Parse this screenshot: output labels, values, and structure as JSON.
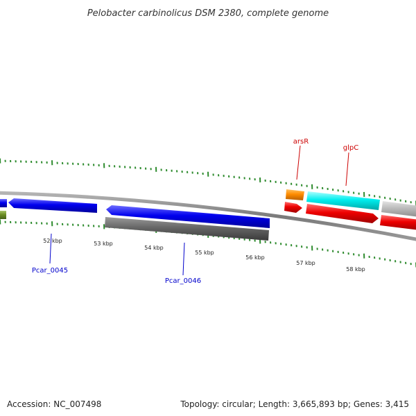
{
  "title": "Pelobacter carbinolicus DSM 2380, complete genome",
  "scale_labels": [
    "52 kbp",
    "53 kbp",
    "54 kbp",
    "55 kbp",
    "56 kbp",
    "57 kbp",
    "58 kbp"
  ],
  "gene_labels": {
    "arsR": "arsR",
    "glpC": "glpC",
    "pcar0045": "Pcar_0045",
    "pcar0046": "Pcar_0046"
  },
  "footer": {
    "accession_label": "Accession:",
    "accession": "NC_007498",
    "topology_label": "Topology:",
    "topology": "circular",
    "length_label": "Length:",
    "length": "3,665,893 bp",
    "genes_label": "Genes:",
    "genes": "3,415"
  },
  "colors": {
    "backbone": "#8a8a8a",
    "ticks": "#2e8b2e",
    "forward_label": "#cc0000",
    "reverse_label": "#0000cc",
    "gene_blue": "#0000ee",
    "gene_gray": "#666666",
    "gene_red": "#ee0000",
    "gene_orange": "#ff8c00",
    "gene_cyan": "#00eeee",
    "gene_lightgray": "#bbbbbb",
    "gene_olive": "#6b8e23"
  }
}
